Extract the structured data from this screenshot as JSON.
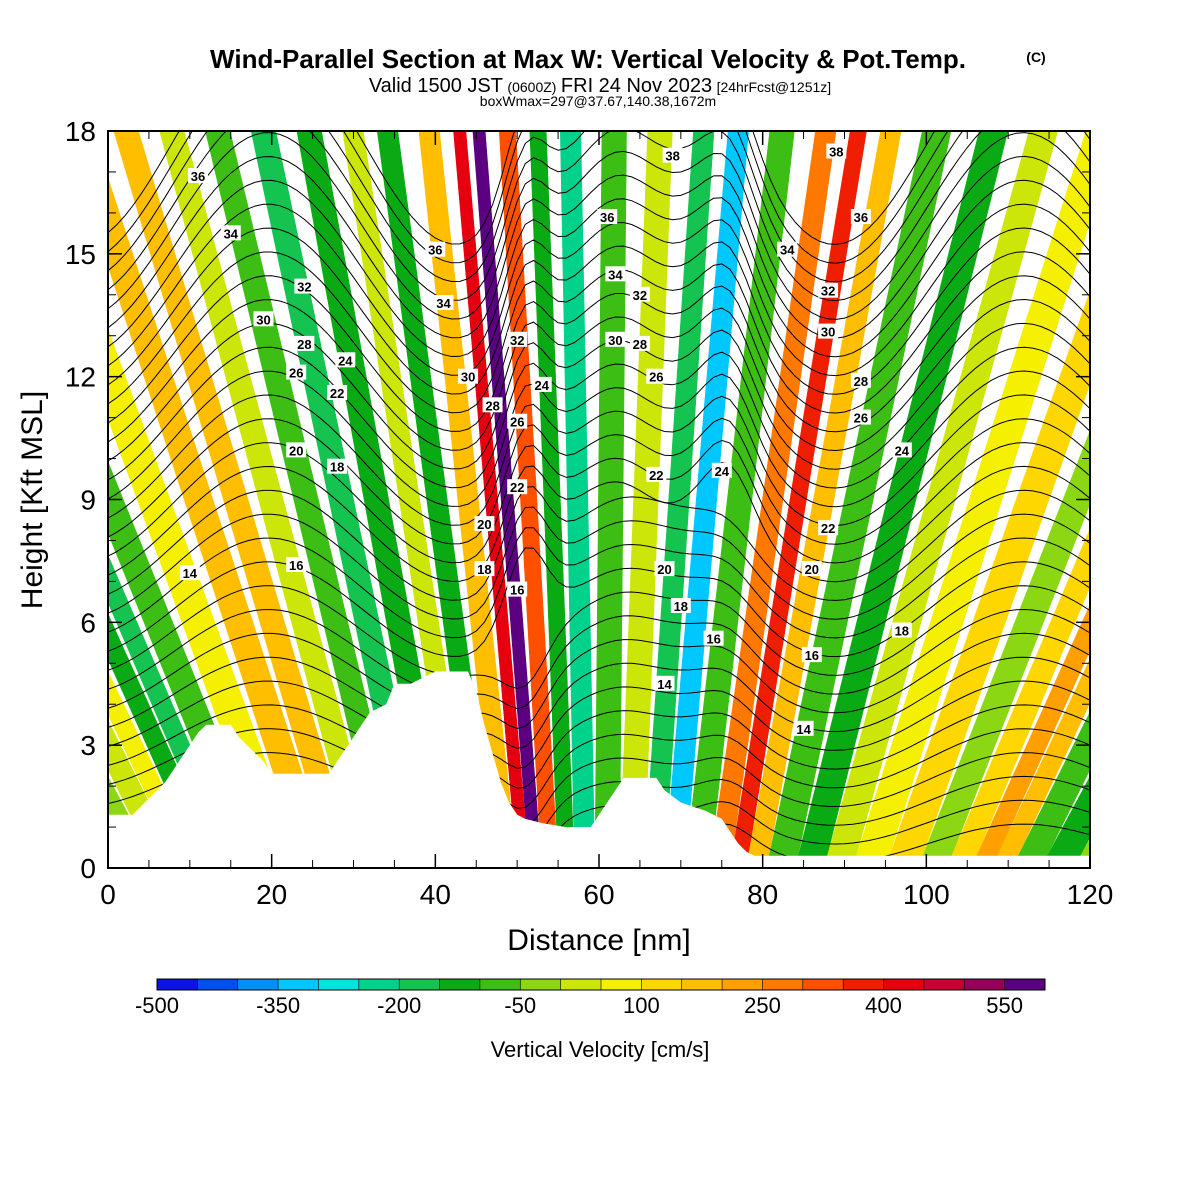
{
  "title": {
    "main": "Wind-Parallel Section at Max W: Vertical Velocity & Pot.Temp.",
    "copyright": "(C)",
    "valid_prefix": "Valid 1500 JST",
    "valid_z": "(0600Z)",
    "valid_date": "FRI 24 Nov 2023",
    "forecast": "[24hrFcst@1251z]",
    "boxwmax": "boxWmax=297@37.67,140.38,1672m"
  },
  "chart_data": {
    "type": "heatmap",
    "xlabel": "Distance [nm]",
    "ylabel": "Height [Kft MSL]",
    "xlim": [
      0,
      120
    ],
    "ylim": [
      0,
      18
    ],
    "x_ticks": [
      "0",
      "20",
      "40",
      "60",
      "80",
      "100",
      "120"
    ],
    "y_ticks": [
      "0",
      "3",
      "6",
      "9",
      "12",
      "15",
      "18"
    ],
    "terrain_kft": [
      [
        0,
        1.3
      ],
      [
        3,
        1.3
      ],
      [
        4,
        1.5
      ],
      [
        5,
        1.7
      ],
      [
        6,
        1.9
      ],
      [
        7,
        2.1
      ],
      [
        8,
        2.4
      ],
      [
        9,
        2.7
      ],
      [
        10,
        3.0
      ],
      [
        11,
        3.3
      ],
      [
        12,
        3.5
      ],
      [
        15,
        3.5
      ],
      [
        16,
        3.2
      ],
      [
        17,
        3.0
      ],
      [
        19,
        2.6
      ],
      [
        20,
        2.3
      ],
      [
        24,
        2.3
      ],
      [
        27,
        2.3
      ],
      [
        28,
        2.6
      ],
      [
        29,
        2.9
      ],
      [
        30,
        3.2
      ],
      [
        31,
        3.5
      ],
      [
        32,
        3.8
      ],
      [
        34,
        4.0
      ],
      [
        35,
        4.5
      ],
      [
        36,
        4.5
      ],
      [
        37,
        4.5
      ],
      [
        40,
        4.8
      ],
      [
        44,
        4.8
      ],
      [
        45,
        4.3
      ],
      [
        46,
        3.5
      ],
      [
        47,
        2.8
      ],
      [
        48,
        2.1
      ],
      [
        49,
        1.6
      ],
      [
        50,
        1.3
      ],
      [
        51,
        1.2
      ],
      [
        53,
        1.1
      ],
      [
        56,
        1.0
      ],
      [
        59,
        1.0
      ],
      [
        60,
        1.3
      ],
      [
        62,
        1.9
      ],
      [
        63,
        2.2
      ],
      [
        64,
        2.2
      ],
      [
        67,
        2.2
      ],
      [
        68,
        1.9
      ],
      [
        70,
        1.6
      ],
      [
        73,
        1.4
      ],
      [
        75,
        1.2
      ],
      [
        76,
        0.9
      ],
      [
        77,
        0.6
      ],
      [
        78,
        0.4
      ],
      [
        79,
        0.3
      ],
      [
        120,
        0.3
      ]
    ],
    "colorbar": {
      "title": "Vertical Velocity [cm/s]",
      "tick_labels": [
        "-500",
        "-350",
        "-200",
        "-50",
        "100",
        "250",
        "400",
        "550"
      ],
      "levels": [
        -500,
        -450,
        -400,
        -350,
        -300,
        -250,
        -200,
        -150,
        -100,
        -50,
        0,
        50,
        100,
        150,
        200,
        250,
        300,
        350,
        400,
        450,
        500,
        550,
        600
      ],
      "colors": [
        "#0a14e6",
        "#0050f0",
        "#0090f5",
        "#00c8ff",
        "#00e6dc",
        "#00d28c",
        "#14c350",
        "#0aaa14",
        "#3cbe14",
        "#8cd714",
        "#cde60a",
        "#f5f000",
        "#ffd700",
        "#ffbe00",
        "#ffa000",
        "#ff7800",
        "#ff5000",
        "#f01e00",
        "#e6000f",
        "#c80032",
        "#96005a",
        "#5a0080"
      ]
    },
    "vertical_velocity_columns": [
      {
        "x": 0,
        "value": -20
      },
      {
        "x": 4,
        "value": -40
      },
      {
        "x": 8,
        "value": 40
      },
      {
        "x": 10,
        "value": 60
      },
      {
        "x": 13,
        "value": -130
      },
      {
        "x": 15,
        "value": -180
      },
      {
        "x": 18,
        "value": -70
      },
      {
        "x": 22,
        "value": 80
      },
      {
        "x": 26,
        "value": 180
      },
      {
        "x": 29,
        "value": 150
      },
      {
        "x": 32,
        "value": 40
      },
      {
        "x": 35,
        "value": -90
      },
      {
        "x": 38,
        "value": -170
      },
      {
        "x": 41,
        "value": -120
      },
      {
        "x": 44,
        "value": 20
      },
      {
        "x": 46,
        "value": -150
      },
      {
        "x": 49,
        "value": 190
      },
      {
        "x": 51,
        "value": 420
      },
      {
        "x": 52,
        "value": 560
      },
      {
        "x": 54,
        "value": 330
      },
      {
        "x": 56,
        "value": -140
      },
      {
        "x": 58,
        "value": -220
      },
      {
        "x": 61,
        "value": -60
      },
      {
        "x": 64,
        "value": 30
      },
      {
        "x": 67,
        "value": -200
      },
      {
        "x": 69,
        "value": -320
      },
      {
        "x": 72,
        "value": -90
      },
      {
        "x": 75,
        "value": 260
      },
      {
        "x": 77,
        "value": 390
      },
      {
        "x": 79,
        "value": 170
      },
      {
        "x": 82,
        "value": -70
      },
      {
        "x": 86,
        "value": -150
      },
      {
        "x": 89,
        "value": 20
      },
      {
        "x": 93,
        "value": 60
      },
      {
        "x": 97,
        "value": 120
      },
      {
        "x": 101,
        "value": -20
      },
      {
        "x": 104,
        "value": 100
      },
      {
        "x": 107,
        "value": 210
      },
      {
        "x": 109,
        "value": 170
      },
      {
        "x": 112,
        "value": -80
      },
      {
        "x": 116,
        "value": -110
      },
      {
        "x": 120,
        "value": -40
      }
    ],
    "potential_temperature_contour_labels": [
      {
        "x": 11,
        "y": 16.9,
        "label": "36"
      },
      {
        "x": 15,
        "y": 15.5,
        "label": "34"
      },
      {
        "x": 24,
        "y": 14.2,
        "label": "32"
      },
      {
        "x": 19,
        "y": 13.4,
        "label": "30"
      },
      {
        "x": 24,
        "y": 12.8,
        "label": "28"
      },
      {
        "x": 23,
        "y": 12.1,
        "label": "26"
      },
      {
        "x": 29,
        "y": 12.4,
        "label": "24"
      },
      {
        "x": 28,
        "y": 11.6,
        "label": "22"
      },
      {
        "x": 23,
        "y": 10.2,
        "label": "20"
      },
      {
        "x": 28,
        "y": 9.8,
        "label": "18"
      },
      {
        "x": 23,
        "y": 7.4,
        "label": "16"
      },
      {
        "x": 10,
        "y": 7.2,
        "label": "14"
      },
      {
        "x": 40,
        "y": 15.1,
        "label": "36"
      },
      {
        "x": 41,
        "y": 13.8,
        "label": "34"
      },
      {
        "x": 44,
        "y": 12.0,
        "label": "30"
      },
      {
        "x": 47,
        "y": 11.3,
        "label": "28"
      },
      {
        "x": 50,
        "y": 12.9,
        "label": "32"
      },
      {
        "x": 53,
        "y": 11.8,
        "label": "24"
      },
      {
        "x": 50,
        "y": 10.9,
        "label": "26"
      },
      {
        "x": 50,
        "y": 9.3,
        "label": "22"
      },
      {
        "x": 46,
        "y": 8.4,
        "label": "20"
      },
      {
        "x": 46,
        "y": 7.3,
        "label": "18"
      },
      {
        "x": 50,
        "y": 6.8,
        "label": "16"
      },
      {
        "x": 61,
        "y": 15.9,
        "label": "36"
      },
      {
        "x": 62,
        "y": 14.5,
        "label": "34"
      },
      {
        "x": 65,
        "y": 14.0,
        "label": "32"
      },
      {
        "x": 62,
        "y": 12.9,
        "label": "30"
      },
      {
        "x": 65,
        "y": 12.8,
        "label": "28"
      },
      {
        "x": 67,
        "y": 12.0,
        "label": "26"
      },
      {
        "x": 67,
        "y": 9.6,
        "label": "22"
      },
      {
        "x": 68,
        "y": 7.3,
        "label": "20"
      },
      {
        "x": 70,
        "y": 6.4,
        "label": "18"
      },
      {
        "x": 68,
        "y": 4.5,
        "label": "14"
      },
      {
        "x": 75,
        "y": 9.7,
        "label": "24"
      },
      {
        "x": 74,
        "y": 5.6,
        "label": "16"
      },
      {
        "x": 69,
        "y": 17.4,
        "label": "38"
      },
      {
        "x": 89,
        "y": 17.5,
        "label": "38"
      },
      {
        "x": 92,
        "y": 15.9,
        "label": "36"
      },
      {
        "x": 83,
        "y": 15.1,
        "label": "34"
      },
      {
        "x": 88,
        "y": 14.1,
        "label": "32"
      },
      {
        "x": 88,
        "y": 13.1,
        "label": "30"
      },
      {
        "x": 92,
        "y": 11.9,
        "label": "28"
      },
      {
        "x": 92,
        "y": 11.0,
        "label": "26"
      },
      {
        "x": 97,
        "y": 10.2,
        "label": "24"
      },
      {
        "x": 88,
        "y": 8.3,
        "label": "22"
      },
      {
        "x": 86,
        "y": 7.3,
        "label": "20"
      },
      {
        "x": 97,
        "y": 5.8,
        "label": "18"
      },
      {
        "x": 86,
        "y": 5.2,
        "label": "16"
      },
      {
        "x": 85,
        "y": 3.4,
        "label": "14"
      }
    ]
  }
}
